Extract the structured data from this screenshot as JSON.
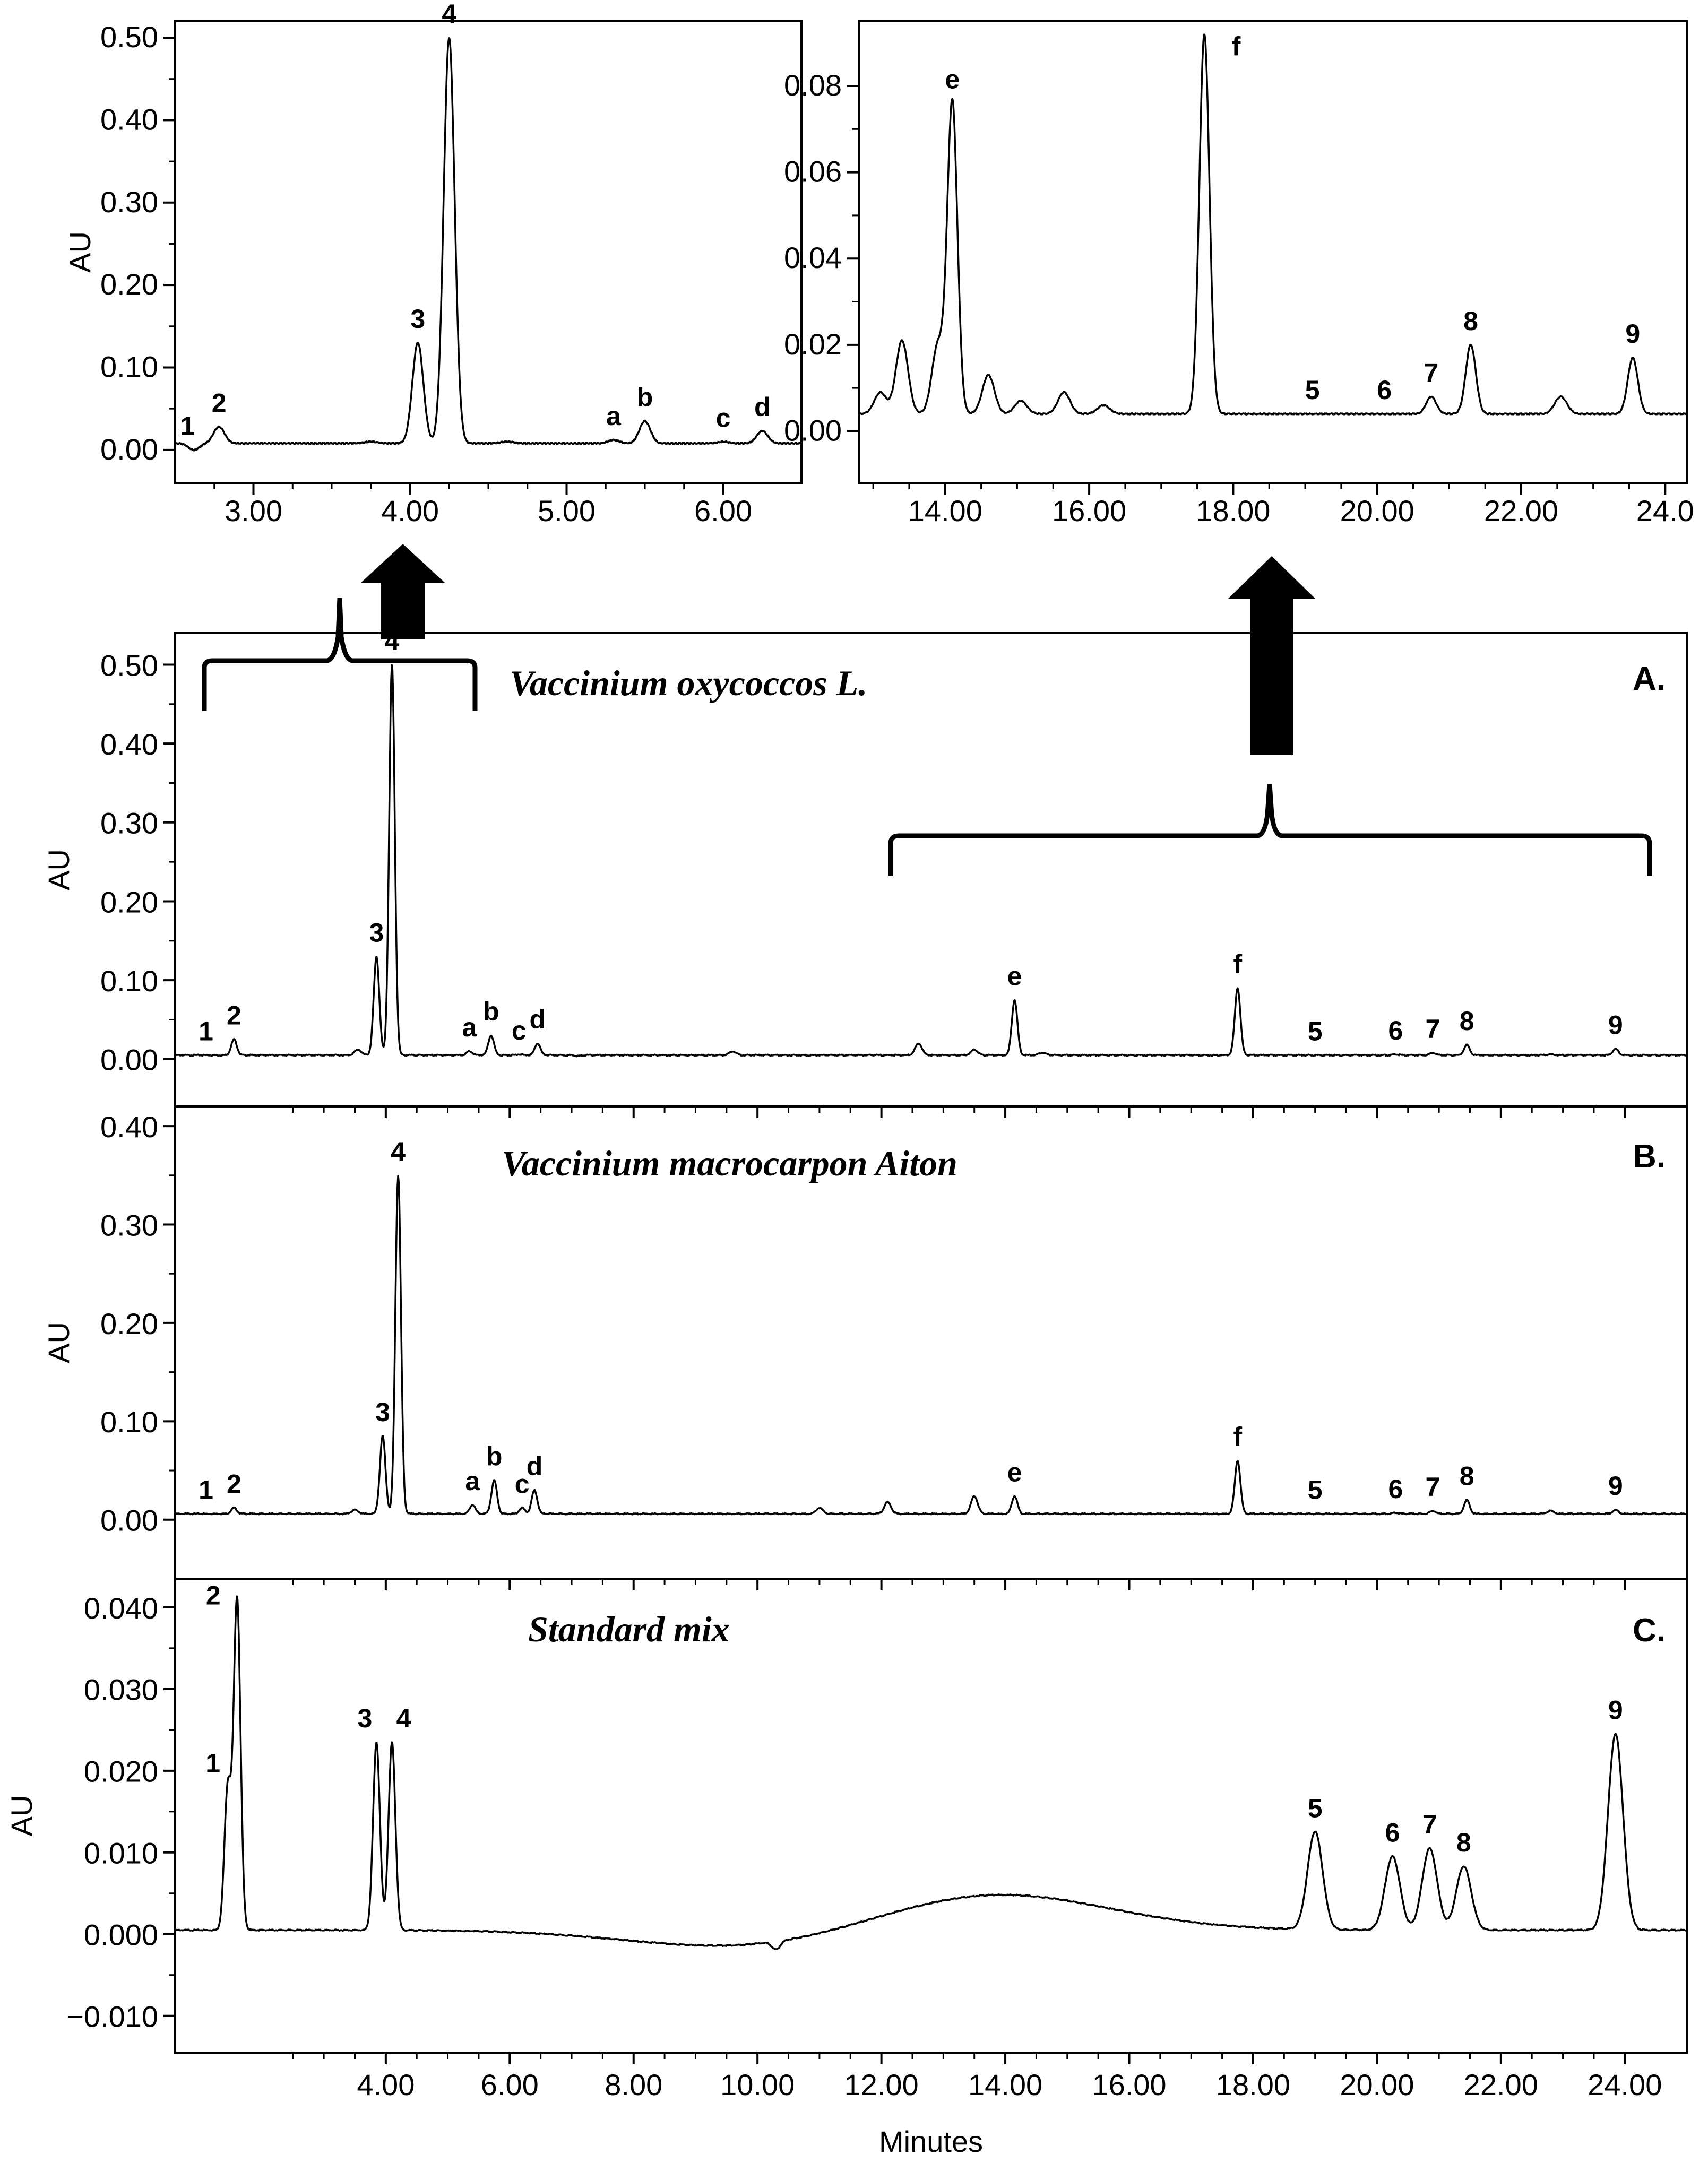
{
  "chart_data": [
    {
      "id": "inset_left",
      "type": "line",
      "ylabel": "AU",
      "xlabel": "",
      "xlim": [
        2.5,
        6.5
      ],
      "ylim": [
        -0.04,
        0.52
      ],
      "xticks": [
        3,
        4,
        5,
        6
      ],
      "xtick_labels": [
        "3.00",
        "4.00",
        "5.00",
        "6.00"
      ],
      "yticks": [
        0,
        0.1,
        0.2,
        0.3,
        0.4,
        0.5
      ],
      "ytick_labels": [
        "0.00",
        "0.10",
        "0.20",
        "0.30",
        "0.40",
        "0.50"
      ],
      "baseline": 0.008,
      "peaks": [
        {
          "label": "1",
          "x": 2.62,
          "y": 0.0
        },
        {
          "label": "2",
          "x": 2.78,
          "y": 0.028
        },
        {
          "label": "3",
          "x": 4.05,
          "y": 0.13
        },
        {
          "label": "4",
          "x": 4.25,
          "y": 0.5
        },
        {
          "label": "a",
          "x": 5.3,
          "y": 0.012
        },
        {
          "label": "b",
          "x": 5.5,
          "y": 0.035
        },
        {
          "label": "c",
          "x": 6.0,
          "y": 0.01
        },
        {
          "label": "d",
          "x": 6.25,
          "y": 0.023
        }
      ],
      "minor_peaks": [
        {
          "x": 3.75,
          "y": 0.01
        },
        {
          "x": 4.62,
          "y": 0.01
        }
      ]
    },
    {
      "id": "inset_right",
      "type": "line",
      "ylabel": "",
      "xlabel": "",
      "xlim": [
        12.8,
        24.3
      ],
      "ylim": [
        -0.012,
        0.095
      ],
      "xticks": [
        14,
        16,
        18,
        20,
        22,
        24
      ],
      "xtick_labels": [
        "14.00",
        "16.00",
        "18.00",
        "20.00",
        "22.00",
        "24.0"
      ],
      "yticks": [
        0,
        0.02,
        0.04,
        0.06,
        0.08
      ],
      "ytick_labels": [
        "0.00",
        "0.02",
        "0.04",
        "0.06",
        "0.08"
      ],
      "baseline": 0.004,
      "peaks": [
        {
          "label": "e",
          "x": 14.1,
          "y": 0.076
        },
        {
          "label": "f",
          "x": 17.6,
          "y": 0.092
        },
        {
          "label": "5",
          "x": 19.1,
          "y": 0.004
        },
        {
          "label": "6",
          "x": 20.1,
          "y": 0.004
        },
        {
          "label": "7",
          "x": 20.75,
          "y": 0.008
        },
        {
          "label": "8",
          "x": 21.3,
          "y": 0.02
        },
        {
          "label": "9",
          "x": 23.55,
          "y": 0.017
        }
      ],
      "minor_peaks": [
        {
          "x": 13.1,
          "y": 0.009
        },
        {
          "x": 13.4,
          "y": 0.021
        },
        {
          "x": 13.9,
          "y": 0.02
        },
        {
          "x": 14.6,
          "y": 0.013
        },
        {
          "x": 15.05,
          "y": 0.007
        },
        {
          "x": 15.65,
          "y": 0.009
        },
        {
          "x": 16.2,
          "y": 0.006
        },
        {
          "x": 22.55,
          "y": 0.008
        }
      ]
    },
    {
      "id": "panel_A",
      "type": "line",
      "title": "Vaccinium oxycoccos L.",
      "tag": "A.",
      "ylabel": "AU",
      "xlabel": "",
      "xlim": [
        0.6,
        25.0
      ],
      "ylim": [
        -0.06,
        0.54
      ],
      "xticks": [
        4,
        6,
        8,
        10,
        12,
        14,
        16,
        18,
        20,
        22,
        24
      ],
      "yticks": [
        0,
        0.1,
        0.2,
        0.3,
        0.4,
        0.5
      ],
      "ytick_labels": [
        "0.00",
        "0.10",
        "0.20",
        "0.30",
        "0.40",
        "0.50"
      ],
      "baseline": 0.005,
      "peaks": [
        {
          "label": "1",
          "x": 1.2,
          "y": 0.005
        },
        {
          "label": "2",
          "x": 1.55,
          "y": 0.025
        },
        {
          "label": "3",
          "x": 3.85,
          "y": 0.13
        },
        {
          "label": "4",
          "x": 4.1,
          "y": 0.5
        },
        {
          "label": "a",
          "x": 5.35,
          "y": 0.01
        },
        {
          "label": "b",
          "x": 5.7,
          "y": 0.03
        },
        {
          "label": "c",
          "x": 6.15,
          "y": 0.006
        },
        {
          "label": "d",
          "x": 6.45,
          "y": 0.02
        },
        {
          "label": "e",
          "x": 14.15,
          "y": 0.075
        },
        {
          "label": "f",
          "x": 17.75,
          "y": 0.09
        },
        {
          "label": "5",
          "x": 19.0,
          "y": 0.005
        },
        {
          "label": "6",
          "x": 20.3,
          "y": 0.006
        },
        {
          "label": "7",
          "x": 20.9,
          "y": 0.008
        },
        {
          "label": "8",
          "x": 21.45,
          "y": 0.018
        },
        {
          "label": "9",
          "x": 23.85,
          "y": 0.013
        }
      ],
      "minor_peaks": [
        {
          "x": 3.55,
          "y": 0.012
        },
        {
          "x": 7.1,
          "y": 0.004
        },
        {
          "x": 9.6,
          "y": 0.01
        },
        {
          "x": 12.6,
          "y": 0.02
        },
        {
          "x": 13.5,
          "y": 0.012
        },
        {
          "x": 14.6,
          "y": 0.008
        },
        {
          "x": 22.8,
          "y": 0.006
        }
      ]
    },
    {
      "id": "panel_B",
      "type": "line",
      "title": "Vaccinium macrocarpon Aiton",
      "tag": "B.",
      "ylabel": "AU",
      "xlabel": "",
      "xlim": [
        0.6,
        25.0
      ],
      "ylim": [
        -0.06,
        0.42
      ],
      "xticks": [
        4,
        6,
        8,
        10,
        12,
        14,
        16,
        18,
        20,
        22,
        24
      ],
      "yticks": [
        0,
        0.1,
        0.2,
        0.3,
        0.4
      ],
      "ytick_labels": [
        "0.00",
        "0.10",
        "0.20",
        "0.30",
        "0.40"
      ],
      "baseline": 0.006,
      "peaks": [
        {
          "label": "1",
          "x": 1.2,
          "y": 0.006
        },
        {
          "label": "2",
          "x": 1.55,
          "y": 0.012
        },
        {
          "label": "3",
          "x": 3.95,
          "y": 0.085
        },
        {
          "label": "4",
          "x": 4.2,
          "y": 0.35
        },
        {
          "label": "a",
          "x": 5.4,
          "y": 0.015
        },
        {
          "label": "b",
          "x": 5.75,
          "y": 0.04
        },
        {
          "label": "c",
          "x": 6.2,
          "y": 0.012
        },
        {
          "label": "d",
          "x": 6.4,
          "y": 0.03
        },
        {
          "label": "e",
          "x": 14.15,
          "y": 0.024
        },
        {
          "label": "f",
          "x": 17.75,
          "y": 0.06
        },
        {
          "label": "5",
          "x": 19.0,
          "y": 0.006
        },
        {
          "label": "6",
          "x": 20.3,
          "y": 0.007
        },
        {
          "label": "7",
          "x": 20.9,
          "y": 0.009
        },
        {
          "label": "8",
          "x": 21.45,
          "y": 0.02
        },
        {
          "label": "9",
          "x": 23.85,
          "y": 0.01
        }
      ],
      "minor_peaks": [
        {
          "x": 3.5,
          "y": 0.01
        },
        {
          "x": 12.1,
          "y": 0.018
        },
        {
          "x": 13.5,
          "y": 0.024
        },
        {
          "x": 11.0,
          "y": 0.012
        },
        {
          "x": 22.8,
          "y": 0.009
        }
      ]
    },
    {
      "id": "panel_C",
      "type": "line",
      "title": "Standard mix",
      "tag": "C.",
      "ylabel": "AU",
      "xlabel": "Minutes",
      "xlim": [
        0.6,
        25.0
      ],
      "ylim": [
        -0.0145,
        0.0435
      ],
      "xticks": [
        4,
        6,
        8,
        10,
        12,
        14,
        16,
        18,
        20,
        22,
        24
      ],
      "xtick_labels": [
        "4.00",
        "6.00",
        "8.00",
        "10.00",
        "12.00",
        "14.00",
        "16.00",
        "18.00",
        "20.00",
        "22.00",
        "24.00"
      ],
      "yticks": [
        -0.01,
        0,
        0.01,
        0.02,
        0.03,
        0.04
      ],
      "ytick_labels": [
        "−0.010",
        "0.000",
        "0.010",
        "0.020",
        "0.030",
        "0.040"
      ],
      "baseline": 0.0005,
      "peaks": [
        {
          "label": "1",
          "x": 1.45,
          "y": 0.018
        },
        {
          "label": "2",
          "x": 1.6,
          "y": 0.041
        },
        {
          "label": "3",
          "x": 3.85,
          "y": 0.0235
        },
        {
          "label": "4",
          "x": 4.1,
          "y": 0.0235
        },
        {
          "label": "5",
          "x": 19.0,
          "y": 0.0125
        },
        {
          "label": "6",
          "x": 20.25,
          "y": 0.0095
        },
        {
          "label": "7",
          "x": 20.85,
          "y": 0.0105
        },
        {
          "label": "8",
          "x": 21.4,
          "y": 0.0083
        },
        {
          "label": "9",
          "x": 23.85,
          "y": 0.0245
        }
      ],
      "minor_peaks": [
        {
          "x": 10.3,
          "y": -0.0005
        }
      ]
    }
  ]
}
